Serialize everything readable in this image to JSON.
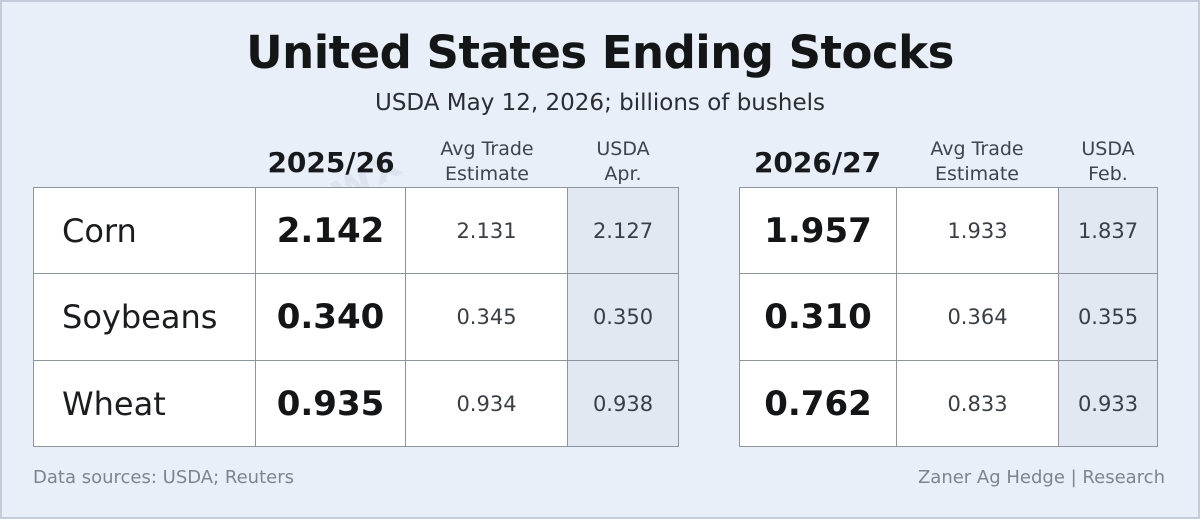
{
  "chart_data": {
    "type": "table",
    "title": "United States Ending Stocks",
    "subtitle": "USDA May 12, 2026; billions of bushels",
    "tables": [
      {
        "year": "2025/26",
        "col_headers": [
          "Avg Trade\nEstimate",
          "USDA\nApr."
        ],
        "rows": [
          {
            "crop": "Corn",
            "value": "2.142",
            "avg_trade": "2.131",
            "usda": "2.127"
          },
          {
            "crop": "Soybeans",
            "value": "0.340",
            "avg_trade": "0.345",
            "usda": "0.350"
          },
          {
            "crop": "Wheat",
            "value": "0.935",
            "avg_trade": "0.934",
            "usda": "0.938"
          }
        ]
      },
      {
        "year": "2026/27",
        "col_headers": [
          "Avg Trade\nEstimate",
          "USDA\nFeb."
        ],
        "rows": [
          {
            "value": "1.957",
            "avg_trade": "1.933",
            "usda": "1.837"
          },
          {
            "value": "0.310",
            "avg_trade": "0.364",
            "usda": "0.355"
          },
          {
            "value": "0.762",
            "avg_trade": "0.833",
            "usda": "0.933"
          }
        ]
      }
    ],
    "footer_left": "Data sources: USDA; Reuters",
    "footer_right": "Zaner Ag Hedge | Research",
    "watermark": "@kannbwx",
    "colors": {
      "background": "#e9eff8",
      "shaded_column": "#e2e8f2",
      "table_border": "#8e949b"
    }
  }
}
